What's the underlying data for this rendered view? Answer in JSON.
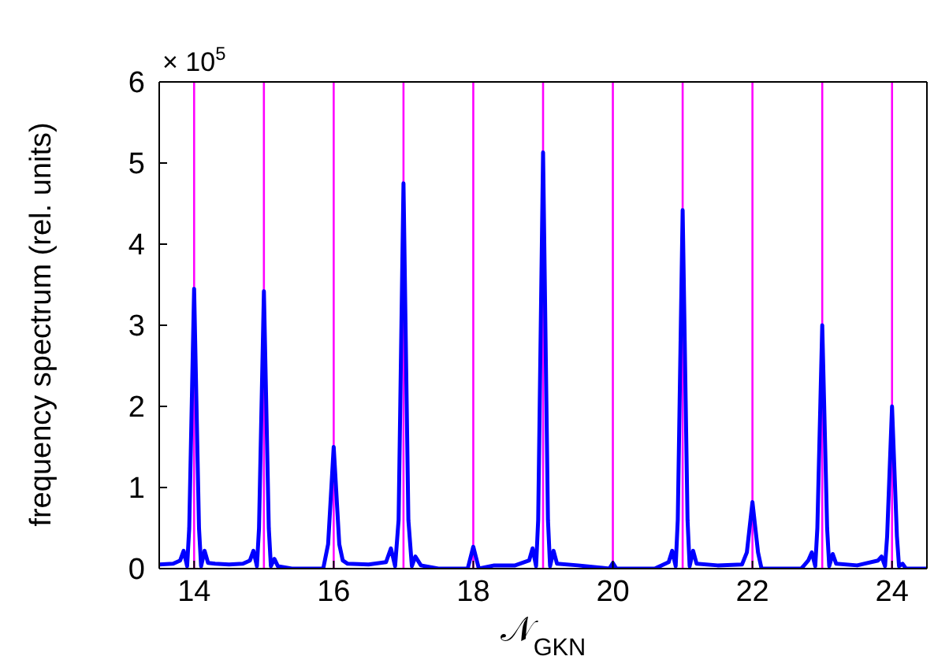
{
  "chart_data": {
    "type": "line",
    "xlabel": "𝒩$_{GKN}$",
    "ylabel": "frequency spectrum (rel. units)",
    "annotations": [
      "× 10$^{5}$"
    ],
    "xlim": [
      13.5,
      24.5
    ],
    "xticks": [
      14,
      16,
      18,
      20,
      22,
      24
    ],
    "ylim": [
      0,
      6
    ],
    "yticks": [
      0,
      1,
      2,
      3,
      4,
      5,
      6
    ],
    "grid": false,
    "marker": "none",
    "line_style": "solid",
    "ref_lines": [
      {
        "axis": "x",
        "value": 14,
        "color": "#ff00ff"
      },
      {
        "axis": "x",
        "value": 15,
        "color": "#ff00ff"
      },
      {
        "axis": "x",
        "value": 16,
        "color": "#ff00ff"
      },
      {
        "axis": "x",
        "value": 17,
        "color": "#ff00ff"
      },
      {
        "axis": "x",
        "value": 18,
        "color": "#ff00ff"
      },
      {
        "axis": "x",
        "value": 19,
        "color": "#ff00ff"
      },
      {
        "axis": "x",
        "value": 20,
        "color": "#ff00ff"
      },
      {
        "axis": "x",
        "value": 21,
        "color": "#ff00ff"
      },
      {
        "axis": "x",
        "value": 22,
        "color": "#ff00ff"
      },
      {
        "axis": "x",
        "value": 23,
        "color": "#ff00ff"
      },
      {
        "axis": "x",
        "value": 24,
        "color": "#ff00ff"
      }
    ],
    "series": [
      {
        "color": "#0000ff",
        "x": [
          13.5,
          13.7,
          13.8,
          13.85,
          13.9,
          13.93,
          14,
          14.07,
          14.1,
          14.15,
          14.2,
          14.3,
          14.5,
          14.7,
          14.8,
          14.85,
          14.9,
          14.93,
          15,
          15.07,
          15.1,
          15.15,
          15.2,
          15.4,
          15.85,
          15.92,
          16,
          16.08,
          16.13,
          16.2,
          16.5,
          16.75,
          16.82,
          16.88,
          16.93,
          17,
          17.07,
          17.12,
          17.17,
          17.25,
          17.5,
          17.92,
          18,
          18.08,
          18.3,
          18.6,
          18.8,
          18.85,
          18.9,
          18.93,
          19,
          19.07,
          19.1,
          19.15,
          19.2,
          19.5,
          19.95,
          20,
          20.05,
          20.6,
          20.8,
          20.85,
          20.9,
          20.93,
          21,
          21.07,
          21.1,
          21.15,
          21.2,
          21.5,
          21.85,
          21.92,
          22,
          22.08,
          22.13,
          22.7,
          22.8,
          22.85,
          22.9,
          22.93,
          23,
          23.07,
          23.1,
          23.15,
          23.2,
          23.5,
          23.8,
          23.85,
          23.9,
          23.93,
          24,
          24.07,
          24.1,
          24.15,
          24.2,
          24.5
        ],
        "values": [
          0.05,
          0.06,
          0.1,
          0.22,
          0.03,
          0.5,
          3.45,
          0.5,
          0.03,
          0.22,
          0.07,
          0.06,
          0.05,
          0.06,
          0.1,
          0.22,
          0.03,
          0.5,
          3.42,
          0.5,
          0.03,
          0.12,
          0.03,
          0,
          0,
          0.3,
          1.5,
          0.3,
          0.1,
          0.06,
          0.05,
          0.08,
          0.25,
          0.03,
          0.6,
          4.75,
          0.6,
          0.03,
          0.15,
          0.04,
          0,
          0,
          0.27,
          0,
          0.04,
          0.04,
          0.1,
          0.25,
          0.03,
          0.6,
          5.13,
          0.6,
          0.03,
          0.22,
          0.06,
          0.04,
          0,
          0.07,
          0,
          0,
          0.08,
          0.22,
          0.03,
          0.6,
          4.42,
          0.6,
          0.03,
          0.22,
          0.06,
          0.04,
          0.05,
          0.2,
          0.82,
          0.2,
          0,
          0,
          0.1,
          0.2,
          0.03,
          0.5,
          3.0,
          0.5,
          0.03,
          0.18,
          0.06,
          0.04,
          0.1,
          0.15,
          0.03,
          0.4,
          2.0,
          0.4,
          0.03,
          0.06,
          0,
          0
        ]
      }
    ]
  }
}
